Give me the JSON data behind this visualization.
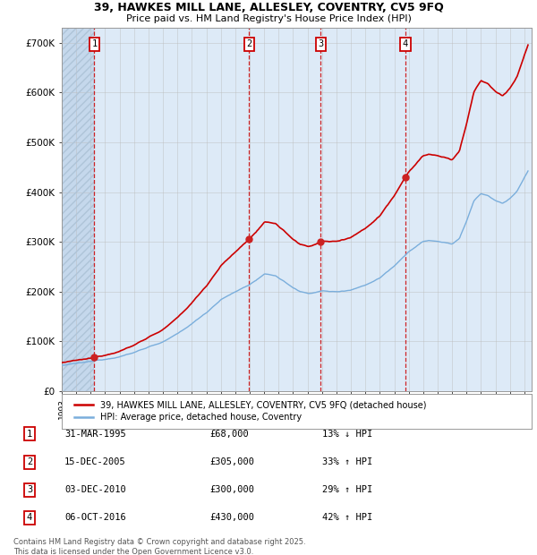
{
  "title_line1": "39, HAWKES MILL LANE, ALLESLEY, COVENTRY, CV5 9FQ",
  "title_line2": "Price paid vs. HM Land Registry's House Price Index (HPI)",
  "yticks": [
    0,
    100000,
    200000,
    300000,
    400000,
    500000,
    600000,
    700000
  ],
  "ytick_labels": [
    "£0",
    "£100K",
    "£200K",
    "£300K",
    "£400K",
    "£500K",
    "£600K",
    "£700K"
  ],
  "xlim_start": 1993.0,
  "xlim_end": 2025.5,
  "ylim": [
    0,
    730000
  ],
  "transactions": [
    {
      "num": 1,
      "year": 1995.25,
      "price": 68000
    },
    {
      "num": 2,
      "year": 2005.96,
      "price": 305000
    },
    {
      "num": 3,
      "year": 2010.92,
      "price": 300000
    },
    {
      "num": 4,
      "year": 2016.77,
      "price": 430000
    }
  ],
  "hpi_color": "#7aaedc",
  "price_color": "#cc0000",
  "background_main": "#ddeaf7",
  "grid_color": "#bbbbbb",
  "legend_label_price": "39, HAWKES MILL LANE, ALLESLEY, COVENTRY, CV5 9FQ (detached house)",
  "legend_label_hpi": "HPI: Average price, detached house, Coventry",
  "footer": "Contains HM Land Registry data © Crown copyright and database right 2025.\nThis data is licensed under the Open Government Licence v3.0.",
  "table_rows": [
    {
      "num": 1,
      "date": "31-MAR-1995",
      "price": "£68,000",
      "pct": "13% ↓ HPI"
    },
    {
      "num": 2,
      "date": "15-DEC-2005",
      "price": "£305,000",
      "pct": "33% ↑ HPI"
    },
    {
      "num": 3,
      "date": "03-DEC-2010",
      "price": "£300,000",
      "pct": "29% ↑ HPI"
    },
    {
      "num": 4,
      "date": "06-OCT-2016",
      "price": "£430,000",
      "pct": "42% ↑ HPI"
    }
  ]
}
